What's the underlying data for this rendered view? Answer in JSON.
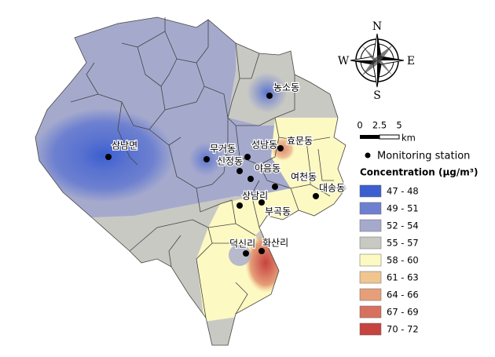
{
  "stations": [
    "삼남면",
    "무거동",
    "신정동",
    "성남동",
    "효문동",
    "농소동",
    "야음동",
    "여천동",
    "대송동",
    "상남리",
    "부곡동",
    "덕신리",
    "화산리"
  ],
  "compass": {
    "north": "N",
    "east": "E",
    "south": "S",
    "west": "W"
  },
  "scale": {
    "ticks": [
      "0",
      "2.5",
      "5"
    ],
    "unit": "km"
  },
  "legend": {
    "station_label": "Monitoring station",
    "title": "Concentration (μg/m³)",
    "items": [
      {
        "label": "47 - 48",
        "color": "#3b5fcf"
      },
      {
        "label": "49 - 51",
        "color": "#6d80d0"
      },
      {
        "label": "52 - 54",
        "color": "#a5aacd"
      },
      {
        "label": "55 - 57",
        "color": "#c9c9c4"
      },
      {
        "label": "58 - 60",
        "color": "#fcf9c2"
      },
      {
        "label": "61 - 63",
        "color": "#f1c590"
      },
      {
        "label": "64 - 66",
        "color": "#e69f78"
      },
      {
        "label": "67 - 69",
        "color": "#d7715f"
      },
      {
        "label": "70 - 72",
        "color": "#c6433f"
      }
    ]
  }
}
